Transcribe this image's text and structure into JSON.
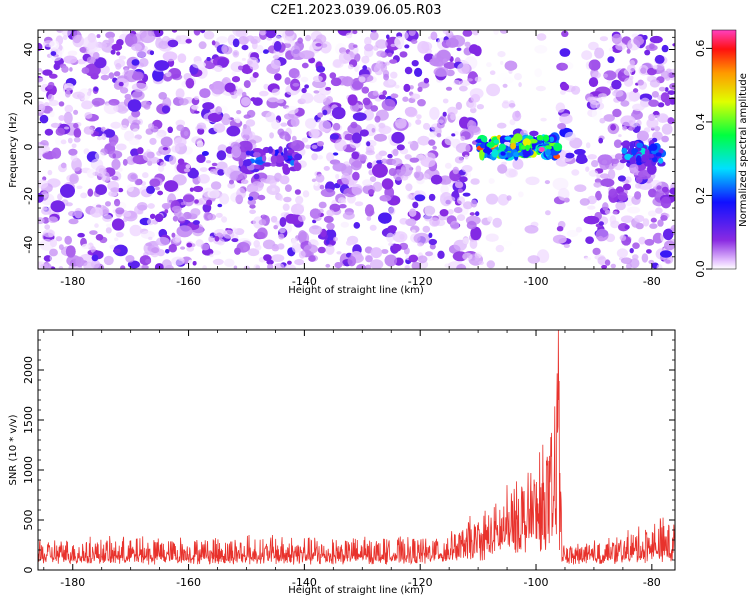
{
  "title": "C2E1.2023.039.06.05.R03",
  "chart_data": [
    {
      "type": "heatmap",
      "xlabel": "Height of straight line (km)",
      "ylabel": "Frequency (Hz)",
      "xlim": [
        -186,
        -76
      ],
      "ylim": [
        -50,
        48
      ],
      "xticks": [
        -180,
        -160,
        -140,
        -120,
        -100,
        -80
      ],
      "yticks": [
        -40,
        -20,
        0,
        20,
        40
      ],
      "colorbar": {
        "label": "Normalized spectral amplitude",
        "range": [
          0.0,
          0.65
        ],
        "ticks": [
          "0.0",
          "0.2",
          "0.4",
          "0.6"
        ],
        "colormap": "rainbow"
      },
      "features": [
        {
          "description_x_range": [
            -110,
            -96
          ],
          "y_center": 0,
          "peak_value": 0.65
        },
        {
          "description_x_range": [
            -85,
            -78
          ],
          "y_center": -2,
          "peak_value": 0.35
        },
        {
          "description_x_range": [
            -151,
            -141
          ],
          "y_center": -5,
          "peak_value": 0.25
        }
      ],
      "gaps_x_ranges": [
        [
          -110,
          -96
        ],
        [
          -95,
          -91
        ]
      ]
    },
    {
      "type": "line",
      "xlabel": "Height of straight line (km)",
      "ylabel": "SNR (10 * v/v)",
      "xlim": [
        -186,
        -76
      ],
      "ylim": [
        0,
        2400
      ],
      "xticks": [
        -180,
        -160,
        -140,
        -120,
        -100,
        -80
      ],
      "yticks": [
        0,
        500,
        1000,
        1500,
        2000
      ],
      "line_color": "#e8322c",
      "series_envelope": {
        "x": [
          -186,
          -170,
          -150,
          -130,
          -120,
          -115,
          -110,
          -106,
          -103,
          -100,
          -98,
          -97,
          -96.2,
          -96,
          -95.5,
          -95,
          -90,
          -85,
          -80,
          -77
        ],
        "baseline": [
          150,
          150,
          150,
          150,
          160,
          190,
          250,
          350,
          450,
          500,
          550,
          600,
          650,
          600,
          150,
          140,
          150,
          170,
          200,
          210
        ],
        "peak": [
          300,
          320,
          340,
          320,
          320,
          380,
          550,
          750,
          1000,
          1100,
          1300,
          1350,
          2400,
          1600,
          450,
          250,
          280,
          350,
          500,
          520
        ]
      }
    }
  ]
}
